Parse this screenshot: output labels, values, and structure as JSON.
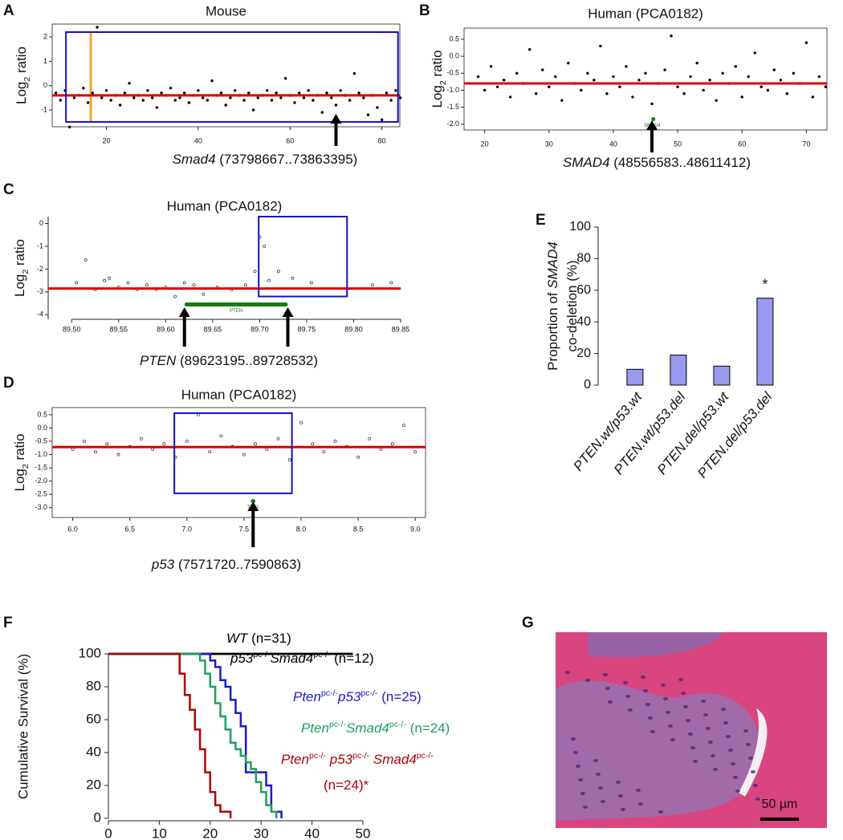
{
  "chart_data": [
    {
      "type": "scatter",
      "panel": "A",
      "title": "Mouse",
      "frame": true,
      "marker": "filled",
      "color": "#000000",
      "y_label": [
        {
          "text": "Log",
          "style": "plain"
        },
        {
          "text": "2",
          "style": "sub"
        },
        {
          "text": " ratio",
          "style": "plain"
        }
      ],
      "x": [
        9,
        10,
        11,
        12,
        13,
        14,
        15,
        16,
        17,
        18,
        19,
        20,
        21,
        22,
        23,
        24,
        25,
        26,
        27,
        28,
        29,
        30,
        31,
        32,
        33,
        34,
        35,
        36,
        37,
        38,
        39,
        40,
        41,
        42,
        43,
        44,
        45,
        46,
        47,
        48,
        49,
        50,
        51,
        52,
        53,
        54,
        55,
        56,
        57,
        58,
        59,
        60,
        61,
        62,
        63,
        64,
        65,
        66,
        67,
        68,
        69,
        70,
        71,
        72,
        73,
        74,
        75,
        76,
        77,
        78,
        79,
        80,
        81,
        82,
        83,
        84
      ],
      "y": [
        -0.3,
        -0.6,
        -0.2,
        -1.7,
        -0.5,
        -0.4,
        -0.1,
        -0.7,
        -0.3,
        2.4,
        -0.5,
        -0.2,
        -0.6,
        -0.4,
        -0.8,
        -0.3,
        0.1,
        -0.5,
        -0.4,
        -0.6,
        -0.2,
        -0.5,
        -0.9,
        -0.3,
        -0.4,
        -0.1,
        -0.6,
        -0.5,
        -0.3,
        -0.7,
        -0.4,
        -0.2,
        -0.5,
        -0.6,
        0.2,
        -0.4,
        -0.3,
        -0.8,
        -0.5,
        -0.2,
        -0.4,
        -0.6,
        -0.3,
        -1.0,
        -0.5,
        -0.4,
        -0.2,
        -0.6,
        -0.3,
        -0.5,
        0.3,
        -0.4,
        -0.7,
        -0.3,
        -0.5,
        -0.2,
        -0.6,
        -0.4,
        -1.1,
        -0.3,
        -0.5,
        -0.8,
        -0.2,
        -0.4,
        -0.6,
        0.5,
        -0.3,
        -0.5,
        -1.2,
        -0.4,
        -0.9,
        -1.4,
        -0.3,
        -0.6,
        -0.2,
        -0.5
      ],
      "xlim": [
        8.2,
        83.9
      ],
      "ylim": [
        -1.69,
        2.53
      ],
      "xticks": [
        20,
        40,
        60,
        80
      ],
      "yticks": [
        2,
        1,
        0,
        -1
      ],
      "mean_line": {
        "y": -0.4,
        "color": "#e00000"
      },
      "box": {
        "x": [
          11.2,
          83.5
        ],
        "y": [
          -1.49,
          2.2
        ],
        "color": "#1010d0"
      },
      "marker_line": {
        "x": 16.6,
        "color": "#f5a623"
      },
      "arrows": [
        70
      ],
      "caption": [
        {
          "text": "Smad4",
          "style": "italic"
        },
        {
          "text": " (73798667..73863395)",
          "style": "plain"
        }
      ]
    },
    {
      "type": "scatter",
      "panel": "B",
      "title": "Human (PCA0182)",
      "frame": true,
      "marker": "filled",
      "color": "#000000",
      "y_label": [
        {
          "text": "Log",
          "style": "plain"
        },
        {
          "text": "2",
          "style": "sub"
        },
        {
          "text": " ratio",
          "style": "plain"
        }
      ],
      "x": [
        19,
        20,
        21,
        22,
        23,
        24,
        25,
        26,
        27,
        28,
        29,
        30,
        31,
        32,
        33,
        34,
        35,
        36,
        37,
        38,
        39,
        40,
        41,
        42,
        43,
        44,
        45,
        46,
        47,
        48,
        49,
        50,
        51,
        52,
        53,
        54,
        55,
        56,
        57,
        58,
        59,
        60,
        61,
        62,
        63,
        64,
        65,
        66,
        67,
        68,
        69,
        70,
        71,
        72,
        73
      ],
      "y": [
        -0.6,
        -1.0,
        -0.3,
        -0.9,
        -0.7,
        -1.2,
        -0.5,
        -0.8,
        0.2,
        -1.1,
        -0.4,
        -0.9,
        -0.6,
        -1.3,
        -0.2,
        -0.8,
        -1.0,
        -0.5,
        -0.7,
        0.3,
        -1.1,
        -0.6,
        -0.9,
        -0.3,
        -1.2,
        -0.7,
        -0.5,
        -1.4,
        -0.8,
        -0.4,
        0.6,
        -0.9,
        -1.1,
        -0.6,
        -0.2,
        -1.0,
        -0.7,
        -1.3,
        -0.5,
        -0.8,
        -0.3,
        -1.2,
        -0.6,
        0.1,
        -0.9,
        -1.0,
        -0.4,
        -0.7,
        -1.1,
        -0.5,
        -0.8,
        0.4,
        -1.2,
        -0.6,
        -0.9
      ],
      "xlim": [
        16.8,
        73.2
      ],
      "ylim": [
        -2.17,
        0.83
      ],
      "xticks": [
        20,
        30,
        40,
        50,
        60,
        70
      ],
      "yticks": [
        0.5,
        {
          "value": 0,
          "label": "0.0"
        },
        -0.5,
        {
          "value": -1,
          "label": "-1.0"
        },
        -1.5,
        {
          "value": -2,
          "label": "-2.0"
        }
      ],
      "mean_line": {
        "y": -0.8,
        "color": "#e00000"
      },
      "gene": {
        "label": "SMAD4",
        "x": [
          45.9,
          46.2
        ],
        "y": -1.85,
        "color": "#1a7a1a"
      },
      "arrows": [
        46
      ],
      "caption": [
        {
          "text": "SMAD4",
          "style": "italic"
        },
        {
          "text": " (48556583..48611412)",
          "style": "plain"
        }
      ]
    },
    {
      "type": "scatter",
      "panel": "C",
      "title": "Human (PCA0182)",
      "frame": false,
      "marker": "open",
      "color": "#000000",
      "y_label": [
        {
          "text": "Log",
          "style": "plain"
        },
        {
          "text": "2",
          "style": "sub"
        },
        {
          "text": " ratio",
          "style": "plain"
        }
      ],
      "x": [
        89.505,
        89.515,
        89.525,
        89.535,
        89.54,
        89.55,
        89.56,
        89.57,
        89.58,
        89.59,
        89.6,
        89.61,
        89.62,
        89.63,
        89.64,
        89.655,
        89.67,
        89.685,
        89.695,
        89.7,
        89.705,
        89.71,
        89.72,
        89.735,
        89.755,
        89.82,
        89.84
      ],
      "y": [
        -2.6,
        -1.6,
        -2.9,
        -2.5,
        -2.4,
        -2.8,
        -2.6,
        -2.9,
        -2.7,
        -2.9,
        -2.8,
        -3.2,
        -2.6,
        -2.7,
        -3.1,
        -2.8,
        -2.9,
        -2.7,
        -2.1,
        -0.6,
        -1.0,
        -2.5,
        -2.1,
        -2.4,
        -2.6,
        -2.7,
        -2.6
      ],
      "xlim": [
        89.475,
        89.85
      ],
      "ylim": [
        -4.2,
        0.3
      ],
      "xticks": [
        {
          "value": 89.5,
          "label": "89.50"
        },
        89.55,
        {
          "value": 89.6,
          "label": "89.60"
        },
        89.65,
        {
          "value": 89.7,
          "label": "89.70"
        },
        89.75,
        {
          "value": 89.8,
          "label": "89.80"
        },
        89.85
      ],
      "yticks": [
        0,
        -1,
        -2,
        -3,
        -4
      ],
      "mean_line": {
        "y": -2.85,
        "color": "#e00000"
      },
      "box": {
        "x": [
          89.699,
          89.793
        ],
        "y": [
          -3.2,
          0.3
        ],
        "color": "#1010d0"
      },
      "gene": {
        "label": "PTEN",
        "x": [
          89.62,
          89.73
        ],
        "y": -3.55,
        "color": "#1a7a1a"
      },
      "arrows": [
        89.62,
        89.73
      ],
      "caption": [
        {
          "text": "PTEN",
          "style": "italic"
        },
        {
          "text": " (89623195..89728532)",
          "style": "plain"
        }
      ]
    },
    {
      "type": "scatter",
      "panel": "D",
      "title": "Human (PCA0182)",
      "frame": true,
      "marker": "open",
      "color": "#000000",
      "y_label": [
        {
          "text": "Log",
          "style": "plain"
        },
        {
          "text": "2",
          "style": "sub"
        },
        {
          "text": " ratio",
          "style": "plain"
        }
      ],
      "x": [
        6.0,
        6.1,
        6.2,
        6.3,
        6.4,
        6.5,
        6.6,
        6.7,
        6.8,
        6.9,
        7.0,
        7.1,
        7.2,
        7.3,
        7.4,
        7.5,
        7.6,
        7.7,
        7.8,
        7.9,
        8.0,
        8.1,
        8.2,
        8.3,
        8.4,
        8.5,
        8.6,
        8.7,
        8.8,
        8.9,
        9.0
      ],
      "y": [
        -0.8,
        -0.5,
        -0.9,
        -0.6,
        -1.0,
        -0.7,
        -0.4,
        -0.8,
        -0.6,
        -1.1,
        -0.5,
        0.5,
        -0.9,
        -0.3,
        -0.7,
        -1.0,
        -0.6,
        -0.8,
        -0.4,
        -1.2,
        0.2,
        -0.6,
        -0.9,
        -0.5,
        -0.7,
        -1.1,
        -0.4,
        -0.8,
        -0.6,
        0.1,
        -0.9
      ],
      "xlim": [
        5.82,
        9.09
      ],
      "ylim": [
        -3.37,
        0.77
      ],
      "xticks": [
        {
          "value": 6,
          "label": "6.0"
        },
        6.5,
        {
          "value": 7,
          "label": "7.0"
        },
        7.5,
        {
          "value": 8,
          "label": "8.0"
        },
        8.5,
        {
          "value": 9,
          "label": "9.0"
        }
      ],
      "yticks": [
        0.5,
        {
          "value": 0,
          "label": "0.0"
        },
        -0.5,
        {
          "value": -1,
          "label": "-1.0"
        },
        -1.5,
        {
          "value": -2,
          "label": "-2.0"
        },
        -2.5,
        {
          "value": -3,
          "label": "-3.0"
        }
      ],
      "mean_line": {
        "y": -0.72,
        "color": "#e00000"
      },
      "box": {
        "x": [
          6.89,
          7.92
        ],
        "y": [
          -2.46,
          0.56
        ],
        "color": "#1010d0"
      },
      "gene": {
        "label": "TP53",
        "x": [
          7.56,
          7.6
        ],
        "y": -2.75,
        "color": "#1a7a1a"
      },
      "arrows": [
        7.58
      ],
      "caption": [
        {
          "text": "p53",
          "style": "italic"
        },
        {
          "text": " (7571720..7590863)",
          "style": "plain"
        }
      ]
    },
    {
      "type": "bar",
      "panel": "E",
      "color": "#9999ee",
      "y_label": [
        [
          {
            "text": "Proportion of ",
            "style": "plain"
          },
          {
            "text": "SMAD4",
            "style": "italic"
          }
        ],
        [
          {
            "text": "co-deletion (%)",
            "style": "plain"
          }
        ]
      ],
      "categories": [
        "PTEN.wt/p53.wt",
        "PTEN.wt/p53.del",
        "PTEN.del/p53.wt",
        "PTEN.del/p53.del"
      ],
      "values": [
        10,
        19,
        12,
        55
      ],
      "ylim": [
        0,
        100
      ],
      "yticks": [
        0,
        20,
        40,
        60,
        80,
        100
      ],
      "annotation": {
        "category": "PTEN.del/p53.del",
        "text": "*"
      }
    },
    {
      "type": "step",
      "panel": "F",
      "y_label": "Cumulative Survival (%)",
      "xlim": [
        0,
        50
      ],
      "ylim": [
        0,
        100
      ],
      "xticks": [
        0,
        10,
        20,
        30,
        40,
        50
      ],
      "yticks": [
        0,
        20,
        40,
        60,
        80,
        100
      ],
      "series": [
        {
          "name": [
            [
              {
                "text": "WT",
                "style": "italic"
              },
              {
                "text": " (n=31)",
                "style": "plain"
              }
            ]
          ],
          "color": "#000000",
          "x": [
            0,
            48
          ],
          "values": [
            100,
            100
          ]
        },
        {
          "name": [
            [
              {
                "text": "p53",
                "style": "italic"
              },
              {
                "text": "pc-/-",
                "style": "sup"
              },
              {
                "text": "Smad4",
                "style": "italic"
              },
              {
                "text": "pc-/-",
                "style": "sup"
              },
              {
                "text": " (n=12)",
                "style": "plain"
              }
            ]
          ],
          "color": "#000000",
          "x": [
            0,
            48
          ],
          "values": [
            100,
            100
          ]
        },
        {
          "name": [
            [
              {
                "text": "Pten",
                "style": "italic"
              },
              {
                "text": "pc-/-",
                "style": "sup"
              },
              {
                "text": "p53",
                "style": "italic"
              },
              {
                "text": "pc-/-",
                "style": "sup"
              },
              {
                "text": " (n=25)",
                "style": "plain"
              }
            ]
          ],
          "color": "#1a1acc",
          "x": [
            0,
            20,
            21,
            22,
            23,
            24,
            25,
            26,
            27,
            31,
            32,
            34
          ],
          "values": [
            100,
            96,
            92,
            84,
            80,
            72,
            64,
            56,
            28,
            20,
            4,
            0
          ]
        },
        {
          "name": [
            [
              {
                "text": "Pten",
                "style": "italic"
              },
              {
                "text": "pc-/-",
                "style": "sup"
              },
              {
                "text": "Smad4",
                "style": "italic"
              },
              {
                "text": "pc-/-",
                "style": "sup"
              },
              {
                "text": " (n=24)",
                "style": "plain"
              }
            ]
          ],
          "color": "#1f9f5f",
          "x": [
            0,
            18,
            19,
            20,
            21,
            22,
            23,
            24,
            25,
            26,
            27,
            28,
            29,
            30,
            31,
            32,
            33
          ],
          "values": [
            100,
            96,
            88,
            80,
            70,
            62,
            54,
            46,
            42,
            38,
            34,
            30,
            22,
            16,
            8,
            4,
            0
          ]
        },
        {
          "name": [
            [
              {
                "text": "Pten",
                "style": "italic"
              },
              {
                "text": "pc-/-",
                "style": "sup"
              },
              {
                "text": " p53",
                "style": "italic"
              },
              {
                "text": "pc-/-",
                "style": "sup"
              },
              {
                "text": " Smad4",
                "style": "italic"
              },
              {
                "text": "pc-/-",
                "style": "sup"
              }
            ],
            [
              {
                "text": "(n=24)*",
                "style": "plain"
              }
            ]
          ],
          "color": "#b00000",
          "x": [
            0,
            14,
            15,
            16,
            17,
            18,
            19,
            20,
            21,
            22,
            24
          ],
          "values": [
            100,
            88,
            75,
            66,
            54,
            42,
            28,
            16,
            8,
            4,
            0
          ]
        }
      ]
    },
    {
      "type": "image",
      "panel": "G",
      "scale_bar": "50 µm"
    }
  ]
}
